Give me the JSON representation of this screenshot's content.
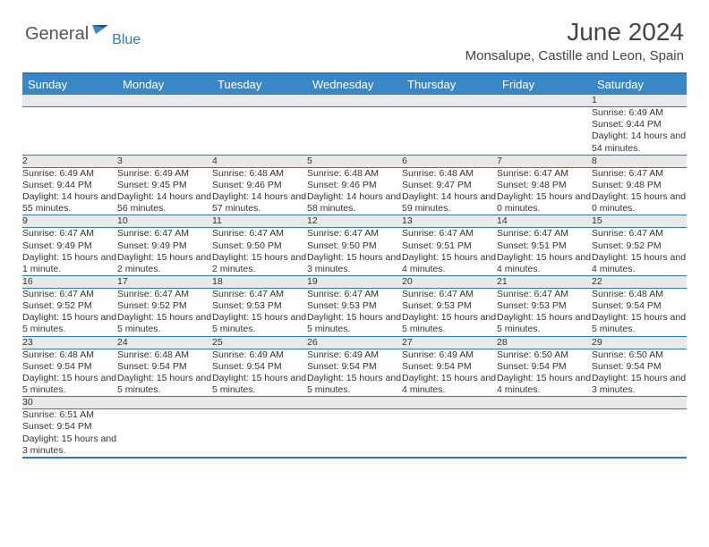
{
  "brand": {
    "name_main": "General",
    "name_sub": "Blue"
  },
  "title": "June 2024",
  "location": "Monsalupe, Castille and Leon, Spain",
  "colors": {
    "header_bg": "#3a87c8",
    "border": "#2f79bb",
    "daynum_bg": "#e9e9e9",
    "text": "#333333"
  },
  "weekdays": [
    "Sunday",
    "Monday",
    "Tuesday",
    "Wednesday",
    "Thursday",
    "Friday",
    "Saturday"
  ],
  "weeks": [
    [
      null,
      null,
      null,
      null,
      null,
      null,
      {
        "n": "1",
        "sr": "6:49 AM",
        "ss": "9:44 PM",
        "d": "14 hours and 54 minutes."
      }
    ],
    [
      {
        "n": "2",
        "sr": "6:49 AM",
        "ss": "9:44 PM",
        "d": "14 hours and 55 minutes."
      },
      {
        "n": "3",
        "sr": "6:49 AM",
        "ss": "9:45 PM",
        "d": "14 hours and 56 minutes."
      },
      {
        "n": "4",
        "sr": "6:48 AM",
        "ss": "9:46 PM",
        "d": "14 hours and 57 minutes."
      },
      {
        "n": "5",
        "sr": "6:48 AM",
        "ss": "9:46 PM",
        "d": "14 hours and 58 minutes."
      },
      {
        "n": "6",
        "sr": "6:48 AM",
        "ss": "9:47 PM",
        "d": "14 hours and 59 minutes."
      },
      {
        "n": "7",
        "sr": "6:47 AM",
        "ss": "9:48 PM",
        "d": "15 hours and 0 minutes."
      },
      {
        "n": "8",
        "sr": "6:47 AM",
        "ss": "9:48 PM",
        "d": "15 hours and 0 minutes."
      }
    ],
    [
      {
        "n": "9",
        "sr": "6:47 AM",
        "ss": "9:49 PM",
        "d": "15 hours and 1 minute."
      },
      {
        "n": "10",
        "sr": "6:47 AM",
        "ss": "9:49 PM",
        "d": "15 hours and 2 minutes."
      },
      {
        "n": "11",
        "sr": "6:47 AM",
        "ss": "9:50 PM",
        "d": "15 hours and 2 minutes."
      },
      {
        "n": "12",
        "sr": "6:47 AM",
        "ss": "9:50 PM",
        "d": "15 hours and 3 minutes."
      },
      {
        "n": "13",
        "sr": "6:47 AM",
        "ss": "9:51 PM",
        "d": "15 hours and 4 minutes."
      },
      {
        "n": "14",
        "sr": "6:47 AM",
        "ss": "9:51 PM",
        "d": "15 hours and 4 minutes."
      },
      {
        "n": "15",
        "sr": "6:47 AM",
        "ss": "9:52 PM",
        "d": "15 hours and 4 minutes."
      }
    ],
    [
      {
        "n": "16",
        "sr": "6:47 AM",
        "ss": "9:52 PM",
        "d": "15 hours and 5 minutes."
      },
      {
        "n": "17",
        "sr": "6:47 AM",
        "ss": "9:52 PM",
        "d": "15 hours and 5 minutes."
      },
      {
        "n": "18",
        "sr": "6:47 AM",
        "ss": "9:53 PM",
        "d": "15 hours and 5 minutes."
      },
      {
        "n": "19",
        "sr": "6:47 AM",
        "ss": "9:53 PM",
        "d": "15 hours and 5 minutes."
      },
      {
        "n": "20",
        "sr": "6:47 AM",
        "ss": "9:53 PM",
        "d": "15 hours and 5 minutes."
      },
      {
        "n": "21",
        "sr": "6:47 AM",
        "ss": "9:53 PM",
        "d": "15 hours and 5 minutes."
      },
      {
        "n": "22",
        "sr": "6:48 AM",
        "ss": "9:54 PM",
        "d": "15 hours and 5 minutes."
      }
    ],
    [
      {
        "n": "23",
        "sr": "6:48 AM",
        "ss": "9:54 PM",
        "d": "15 hours and 5 minutes."
      },
      {
        "n": "24",
        "sr": "6:48 AM",
        "ss": "9:54 PM",
        "d": "15 hours and 5 minutes."
      },
      {
        "n": "25",
        "sr": "6:49 AM",
        "ss": "9:54 PM",
        "d": "15 hours and 5 minutes."
      },
      {
        "n": "26",
        "sr": "6:49 AM",
        "ss": "9:54 PM",
        "d": "15 hours and 5 minutes."
      },
      {
        "n": "27",
        "sr": "6:49 AM",
        "ss": "9:54 PM",
        "d": "15 hours and 4 minutes."
      },
      {
        "n": "28",
        "sr": "6:50 AM",
        "ss": "9:54 PM",
        "d": "15 hours and 4 minutes."
      },
      {
        "n": "29",
        "sr": "6:50 AM",
        "ss": "9:54 PM",
        "d": "15 hours and 3 minutes."
      }
    ],
    [
      {
        "n": "30",
        "sr": "6:51 AM",
        "ss": "9:54 PM",
        "d": "15 hours and 3 minutes."
      },
      null,
      null,
      null,
      null,
      null,
      null
    ]
  ],
  "labels": {
    "sunrise": "Sunrise:",
    "sunset": "Sunset:",
    "daylight": "Daylight:"
  }
}
